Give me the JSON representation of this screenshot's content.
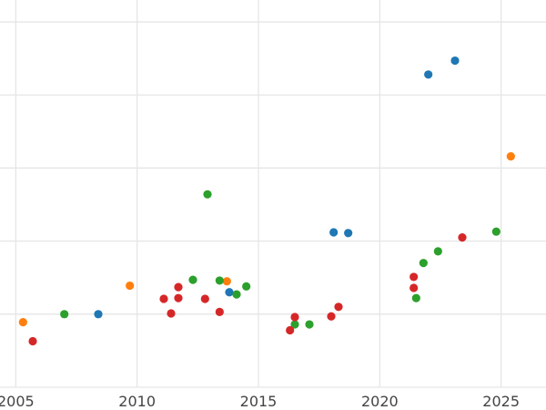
{
  "chart_data": {
    "type": "scatter",
    "title": "",
    "xlabel": "",
    "ylabel": "",
    "xlim": [
      2004.35,
      2026.85
    ],
    "ylim": [
      0,
      530
    ],
    "x_ticks": [
      2005,
      2010,
      2015,
      2020,
      2025
    ],
    "x_tick_labels": [
      "2005",
      "2010",
      "2015",
      "2020",
      "2025"
    ],
    "y_gridlines": [
      0,
      100,
      200,
      300,
      400,
      500
    ],
    "grid": true,
    "legend": "none",
    "series": [
      {
        "color": "#1f77b4",
        "points": [
          {
            "x": 2008.4,
            "y": 100
          },
          {
            "x": 2013.8,
            "y": 130
          },
          {
            "x": 2018.1,
            "y": 212
          },
          {
            "x": 2018.7,
            "y": 211
          },
          {
            "x": 2022.0,
            "y": 428
          },
          {
            "x": 2023.1,
            "y": 447
          }
        ]
      },
      {
        "color": "#ff7f0e",
        "points": [
          {
            "x": 2005.3,
            "y": 89
          },
          {
            "x": 2009.7,
            "y": 139
          },
          {
            "x": 2013.7,
            "y": 145
          },
          {
            "x": 2025.4,
            "y": 316
          }
        ]
      },
      {
        "color": "#2ca02c",
        "points": [
          {
            "x": 2007.0,
            "y": 100
          },
          {
            "x": 2012.3,
            "y": 147
          },
          {
            "x": 2012.9,
            "y": 264
          },
          {
            "x": 2013.4,
            "y": 146
          },
          {
            "x": 2014.1,
            "y": 127
          },
          {
            "x": 2014.5,
            "y": 138
          },
          {
            "x": 2016.5,
            "y": 86
          },
          {
            "x": 2017.1,
            "y": 86
          },
          {
            "x": 2021.5,
            "y": 122
          },
          {
            "x": 2021.8,
            "y": 170
          },
          {
            "x": 2022.4,
            "y": 186
          },
          {
            "x": 2024.8,
            "y": 213
          }
        ]
      },
      {
        "color": "#d62728",
        "points": [
          {
            "x": 2005.7,
            "y": 63
          },
          {
            "x": 2011.1,
            "y": 121
          },
          {
            "x": 2011.4,
            "y": 101
          },
          {
            "x": 2011.7,
            "y": 137
          },
          {
            "x": 2011.7,
            "y": 122
          },
          {
            "x": 2012.8,
            "y": 121
          },
          {
            "x": 2013.4,
            "y": 103
          },
          {
            "x": 2016.3,
            "y": 78
          },
          {
            "x": 2016.5,
            "y": 96
          },
          {
            "x": 2018.0,
            "y": 97
          },
          {
            "x": 2018.3,
            "y": 110
          },
          {
            "x": 2021.4,
            "y": 151
          },
          {
            "x": 2021.4,
            "y": 136
          },
          {
            "x": 2023.4,
            "y": 205
          }
        ]
      }
    ]
  }
}
